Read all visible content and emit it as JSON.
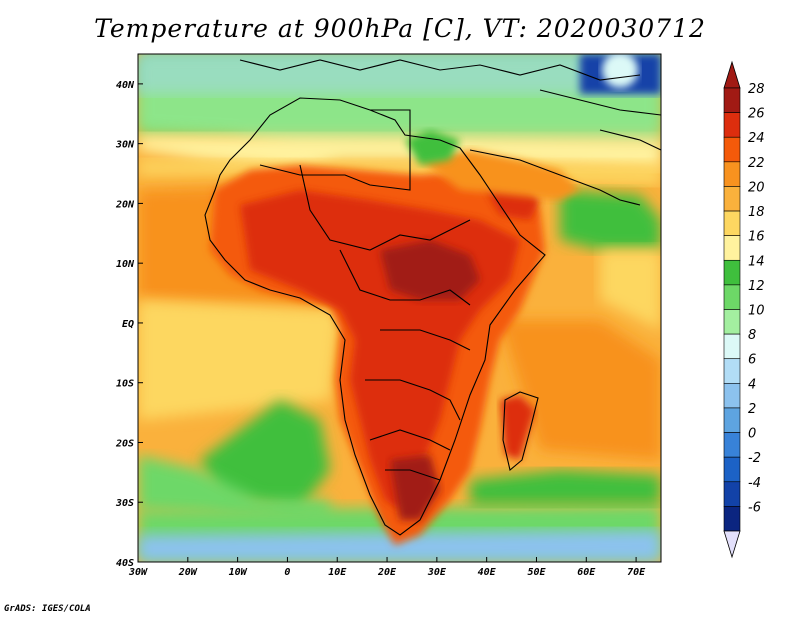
{
  "title": "Temperature at 900hPa [C], VT: 2020030712",
  "credit": "GrADS: IGES/COLA",
  "map": {
    "lon_range": [
      -30,
      75
    ],
    "lat_range": [
      -40,
      45
    ],
    "x_ticks": [
      {
        "value": -30,
        "label": "30W"
      },
      {
        "value": -20,
        "label": "20W"
      },
      {
        "value": -10,
        "label": "10W"
      },
      {
        "value": 0,
        "label": "0"
      },
      {
        "value": 10,
        "label": "10E"
      },
      {
        "value": 20,
        "label": "20E"
      },
      {
        "value": 30,
        "label": "30E"
      },
      {
        "value": 40,
        "label": "40E"
      },
      {
        "value": 50,
        "label": "50E"
      },
      {
        "value": 60,
        "label": "60E"
      },
      {
        "value": 70,
        "label": "70E"
      }
    ],
    "y_ticks": [
      {
        "value": 40,
        "label": "40N"
      },
      {
        "value": 30,
        "label": "30N"
      },
      {
        "value": 20,
        "label": "20N"
      },
      {
        "value": 10,
        "label": "10N"
      },
      {
        "value": 0,
        "label": "EQ"
      },
      {
        "value": -10,
        "label": "10S"
      },
      {
        "value": -20,
        "label": "20S"
      },
      {
        "value": -30,
        "label": "30S"
      },
      {
        "value": -40,
        "label": "40S"
      }
    ]
  },
  "colorbar": {
    "bins": [
      {
        "label": "28",
        "color": "#a11a14"
      },
      {
        "label": "26",
        "color": "#dd2e0e"
      },
      {
        "label": "24",
        "color": "#f45a0a"
      },
      {
        "label": "22",
        "color": "#f8921f"
      },
      {
        "label": "20",
        "color": "#fab13c"
      },
      {
        "label": "18",
        "color": "#fdd761"
      },
      {
        "label": "16",
        "color": "#fff29e"
      },
      {
        "label": "14",
        "color": "#3fbf3d"
      },
      {
        "label": "12",
        "color": "#6dd867"
      },
      {
        "label": "10",
        "color": "#a3efa0"
      },
      {
        "label": "8",
        "color": "#dcf9f7"
      },
      {
        "label": "6",
        "color": "#b2ddf6"
      },
      {
        "label": "4",
        "color": "#8cc2ee"
      },
      {
        "label": "2",
        "color": "#5ea4e0"
      },
      {
        "label": "0",
        "color": "#3882d8"
      },
      {
        "label": "-2",
        "color": "#1c62c6"
      },
      {
        "label": "-4",
        "color": "#1242a8"
      },
      {
        "label": "-6",
        "color": "#0b2580"
      }
    ],
    "top_arrow_color": "#a11a14",
    "bottom_arrow_color": "#e3e0fb"
  }
}
